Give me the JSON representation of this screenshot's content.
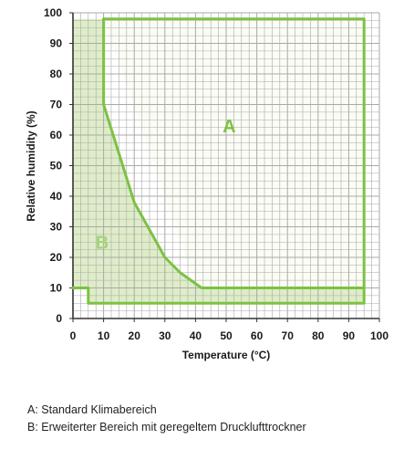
{
  "chart_data": {
    "type": "area",
    "xlabel": "Temperature (°C)",
    "ylabel": "Relative humidity (%)",
    "xlim": [
      0,
      100
    ],
    "ylim": [
      0,
      100
    ],
    "x_ticks": [
      0,
      10,
      20,
      30,
      40,
      50,
      60,
      70,
      80,
      90,
      100
    ],
    "y_ticks": [
      0,
      10,
      20,
      30,
      40,
      50,
      60,
      70,
      80,
      90,
      100
    ],
    "grid": true,
    "regions": [
      {
        "name": "A",
        "polygon": [
          [
            10,
            98
          ],
          [
            95,
            98
          ],
          [
            95,
            5
          ],
          [
            42,
            5
          ]
        ],
        "fill": "#fbfdf4"
      },
      {
        "name": "B",
        "polygon": [
          [
            0,
            98
          ],
          [
            10,
            98
          ],
          [
            10,
            70
          ],
          [
            20,
            38
          ],
          [
            30,
            20
          ],
          [
            35,
            15
          ],
          [
            42,
            10
          ],
          [
            95,
            10
          ],
          [
            95,
            5
          ],
          [
            5,
            5
          ],
          [
            5,
            10
          ],
          [
            0,
            10
          ]
        ],
        "fill": "#deedc8"
      }
    ],
    "boundaries": [
      {
        "name": "A",
        "points": [
          [
            10,
            98
          ],
          [
            95,
            98
          ],
          [
            95,
            5
          ],
          [
            5,
            5
          ],
          [
            5,
            10
          ],
          [
            0,
            10
          ]
        ]
      },
      {
        "name": "B",
        "points": [
          [
            10,
            98
          ],
          [
            10,
            70
          ],
          [
            20,
            38
          ],
          [
            30,
            20
          ],
          [
            35,
            15
          ],
          [
            42,
            10
          ],
          [
            95,
            10
          ]
        ]
      }
    ],
    "region_labels": [
      {
        "text": "A",
        "x": 51,
        "y": 63,
        "color": "#7cc243"
      },
      {
        "text": "B",
        "x": 9.5,
        "y": 25,
        "color": "#a5d47b"
      }
    ],
    "line_color": "#7cc243",
    "grid_color": "#a9a9a9"
  },
  "legend": {
    "a": "A: Standard Klimabereich",
    "b": "B: Erweiterter Bereich mit geregeltem Drucklufttrockner"
  }
}
